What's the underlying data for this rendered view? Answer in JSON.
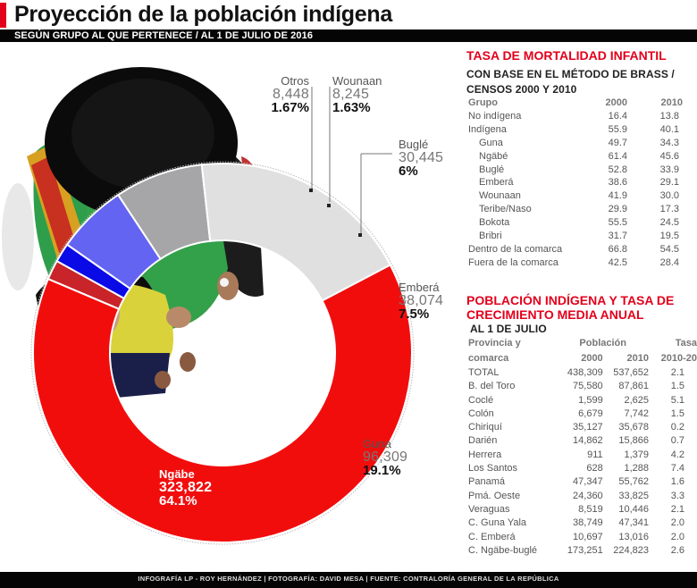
{
  "header": {
    "title": "Proyección de la población indígena",
    "subtitle": "SEGÚN GRUPO AL QUE PERTENECE / AL 1 DE JULIO DE 2016",
    "accent_color": "#e3001b"
  },
  "chart_data": {
    "type": "pie",
    "variant": "donut",
    "title": "Proyección de la población indígena",
    "subtitle": "Según grupo al que pertenece / al 1 de julio de 2016",
    "categories": [
      "Ngäbe",
      "Guna",
      "Emberá",
      "Buglé",
      "Wounaan",
      "Otros"
    ],
    "values": [
      323822,
      96309,
      38074,
      30445,
      8245,
      8448
    ],
    "percentages": [
      64.1,
      19.1,
      7.5,
      6,
      1.63,
      1.67
    ],
    "colors": [
      "#f20d0d",
      "#e0e0e0",
      "#a6a6a8",
      "#6464f2",
      "#0a0ae6",
      "#c9242a"
    ],
    "labels": {
      "ngabe": {
        "name": "Ngäbe",
        "value": "323,822",
        "pct": "64.1%"
      },
      "guna": {
        "name": "Guna",
        "value": "96,309",
        "pct": "19.1%"
      },
      "embera": {
        "name": "Emberá",
        "value": "38,074",
        "pct": "7.5%"
      },
      "bugle": {
        "name": "Buglé",
        "value": "30,445",
        "pct": "6%"
      },
      "wounaan": {
        "name": "Wounaan",
        "value": "8,245",
        "pct": "1.63%"
      },
      "otros": {
        "name": "Otros",
        "value": "8,448",
        "pct": "1.67%"
      }
    },
    "legend": "direct labels"
  },
  "mortality": {
    "title": "TASA DE MORTALIDAD INFANTIL",
    "subtitle_1": "CON BASE EN EL MÉTODO DE BRASS /",
    "subtitle_2": "CENSOS 2000 Y 2010",
    "headers": [
      "Grupo",
      "2000",
      "2010"
    ],
    "rows": [
      {
        "group": "No indígena",
        "y2000": "16.4",
        "y2010": "13.8",
        "indent": false
      },
      {
        "group": "Indígena",
        "y2000": "55.9",
        "y2010": "40.1",
        "indent": false
      },
      {
        "group": "Guna",
        "y2000": "49.7",
        "y2010": "34.3",
        "indent": true
      },
      {
        "group": "Ngäbé",
        "y2000": "61.4",
        "y2010": "45.6",
        "indent": true
      },
      {
        "group": "Buglé",
        "y2000": "52.8",
        "y2010": "33.9",
        "indent": true
      },
      {
        "group": "Emberá",
        "y2000": "38.6",
        "y2010": "29.1",
        "indent": true
      },
      {
        "group": "Wounaan",
        "y2000": "41.9",
        "y2010": "30.0",
        "indent": true
      },
      {
        "group": "Teribe/Naso",
        "y2000": "29.9",
        "y2010": "17.3",
        "indent": true
      },
      {
        "group": "Bokota",
        "y2000": "55.5",
        "y2010": "24.5",
        "indent": true
      },
      {
        "group": "Bribri",
        "y2000": "31.7",
        "y2010": "19.5",
        "indent": true
      },
      {
        "group": "Dentro de la comarca",
        "y2000": "66.8",
        "y2010": "54.5",
        "indent": false
      },
      {
        "group": "Fuera de la comarca",
        "y2000": "42.5",
        "y2010": "28.4",
        "indent": false
      }
    ]
  },
  "population": {
    "title_1": "POBLACIÓN INDÍGENA Y TASA DE",
    "title_2": "CRECIMIENTO MEDIA ANUAL",
    "subtitle": "AL 1 DE JULIO",
    "headers": {
      "province_1": "Provincia y",
      "province_2": "comarca",
      "population": "Población",
      "y2000": "2000",
      "y2010": "2010",
      "rate_1": "Tasa",
      "rate_2": "2010-20"
    },
    "rows": [
      {
        "name": "TOTAL",
        "p2000": "438,309",
        "p2010": "537,652",
        "rate": "2.1"
      },
      {
        "name": "B. del Toro",
        "p2000": "75,580",
        "p2010": "87,861",
        "rate": "1.5"
      },
      {
        "name": "Coclé",
        "p2000": "1,599",
        "p2010": "2,625",
        "rate": "5.1"
      },
      {
        "name": "Colón",
        "p2000": "6,679",
        "p2010": "7,742",
        "rate": "1.5"
      },
      {
        "name": "Chiriquí",
        "p2000": "35,127",
        "p2010": "35,678",
        "rate": "0.2"
      },
      {
        "name": "Darién",
        "p2000": "14,862",
        "p2010": "15,866",
        "rate": "0.7"
      },
      {
        "name": "Herrera",
        "p2000": "911",
        "p2010": "1,379",
        "rate": "4.2"
      },
      {
        "name": "Los Santos",
        "p2000": "628",
        "p2010": "1,288",
        "rate": "7.4"
      },
      {
        "name": "Panamá",
        "p2000": "47,347",
        "p2010": "55,762",
        "rate": "1.6"
      },
      {
        "name": "Pmá. Oeste",
        "p2000": "24,360",
        "p2010": "33,825",
        "rate": "3.3"
      },
      {
        "name": "Veraguas",
        "p2000": "8,519",
        "p2010": "10,446",
        "rate": "2.1"
      },
      {
        "name": "C. Guna Yala",
        "p2000": "38,749",
        "p2010": "47,341",
        "rate": "2.0"
      },
      {
        "name": "C. Emberá",
        "p2000": "10,697",
        "p2010": "13,016",
        "rate": "2.0"
      },
      {
        "name": "C. Ngäbe-buglé",
        "p2000": "173,251",
        "p2010": "224,823",
        "rate": "2.6"
      }
    ]
  },
  "footer": {
    "credits": "INFOGRAFÍA LP - ROY HERNÁNDEZ | FOTOGRAFÍA: DAVID MESA | FUENTE: CONTRALORÍA GENERAL DE LA REPÚBLICA"
  }
}
